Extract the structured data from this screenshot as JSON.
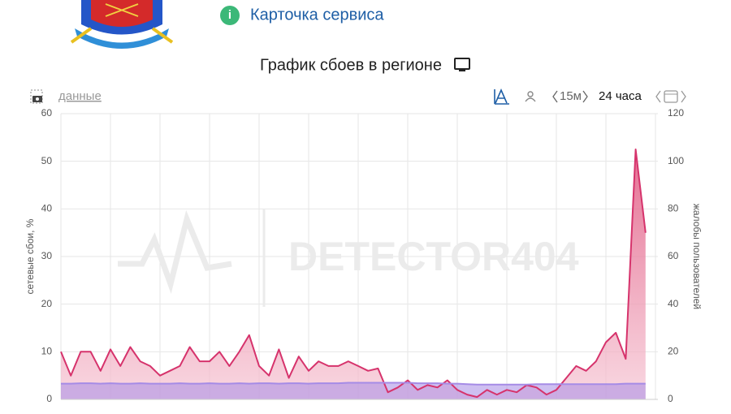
{
  "header": {
    "link": "Карточка сервиса"
  },
  "toolbar": {
    "data_link": "данные",
    "interval": "15м",
    "range": "24 часа"
  },
  "chart_data": {
    "type": "area",
    "title": "График сбоев в регионе",
    "ylabel": "сетевые сбои, %",
    "y2label": "жалобы пользователей",
    "watermark": "DETECTOR404",
    "categories": [
      null,
      null,
      null,
      null,
      null,
      null,
      null,
      null,
      null,
      null,
      null,
      null,
      null,
      null,
      null,
      null,
      null,
      null,
      null,
      null,
      null,
      null,
      null,
      null,
      null,
      null,
      null,
      null,
      null,
      null,
      null,
      null,
      null,
      null,
      null,
      null,
      null,
      null,
      null,
      null,
      null,
      null,
      null,
      null,
      null,
      null,
      null,
      null,
      null,
      null,
      null,
      null,
      null,
      null,
      null,
      null,
      null,
      null,
      null,
      null
    ],
    "ylim": [
      0,
      60
    ],
    "yticks": [
      0,
      10,
      20,
      30,
      40,
      50,
      60
    ],
    "y2lim": [
      0,
      120
    ],
    "y2ticks": [
      0,
      20,
      40,
      60,
      80,
      100,
      120
    ],
    "grid": true,
    "series": [
      {
        "color": "#a58be6",
        "values": [
          3.3,
          3.3,
          3.4,
          3.4,
          3.3,
          3.4,
          3.3,
          3.3,
          3.4,
          3.3,
          3.3,
          3.3,
          3.4,
          3.3,
          3.3,
          3.4,
          3.3,
          3.3,
          3.4,
          3.3,
          3.4,
          3.4,
          3.3,
          3.4,
          3.4,
          3.3,
          3.4,
          3.4,
          3.4,
          3.5,
          3.5,
          3.5,
          3.5,
          3.5,
          3.5,
          3.5,
          3.4,
          3.4,
          3.4,
          3.3,
          3.3,
          3.2,
          3.1,
          3.1,
          3.1,
          3.1,
          3.1,
          3.1,
          3.2,
          3.2,
          3.2,
          3.2,
          3.2,
          3.2,
          3.2,
          3.2,
          3.2,
          3.3,
          3.3,
          3.3
        ]
      },
      {
        "color": "#d6336c",
        "axis": "y2",
        "values": [
          20,
          10,
          20,
          20,
          12,
          21,
          14,
          22,
          16,
          14,
          10,
          12,
          14,
          22,
          16,
          16,
          20,
          14,
          20,
          27,
          14,
          10,
          21,
          9,
          18,
          12,
          16,
          14,
          14,
          16,
          14,
          12,
          13,
          3,
          5,
          8,
          4,
          6,
          5,
          8,
          4,
          2,
          1,
          4,
          2,
          4,
          3,
          6,
          5,
          2,
          4,
          9,
          14,
          12,
          16,
          24,
          28,
          17,
          105,
          70
        ]
      }
    ]
  }
}
